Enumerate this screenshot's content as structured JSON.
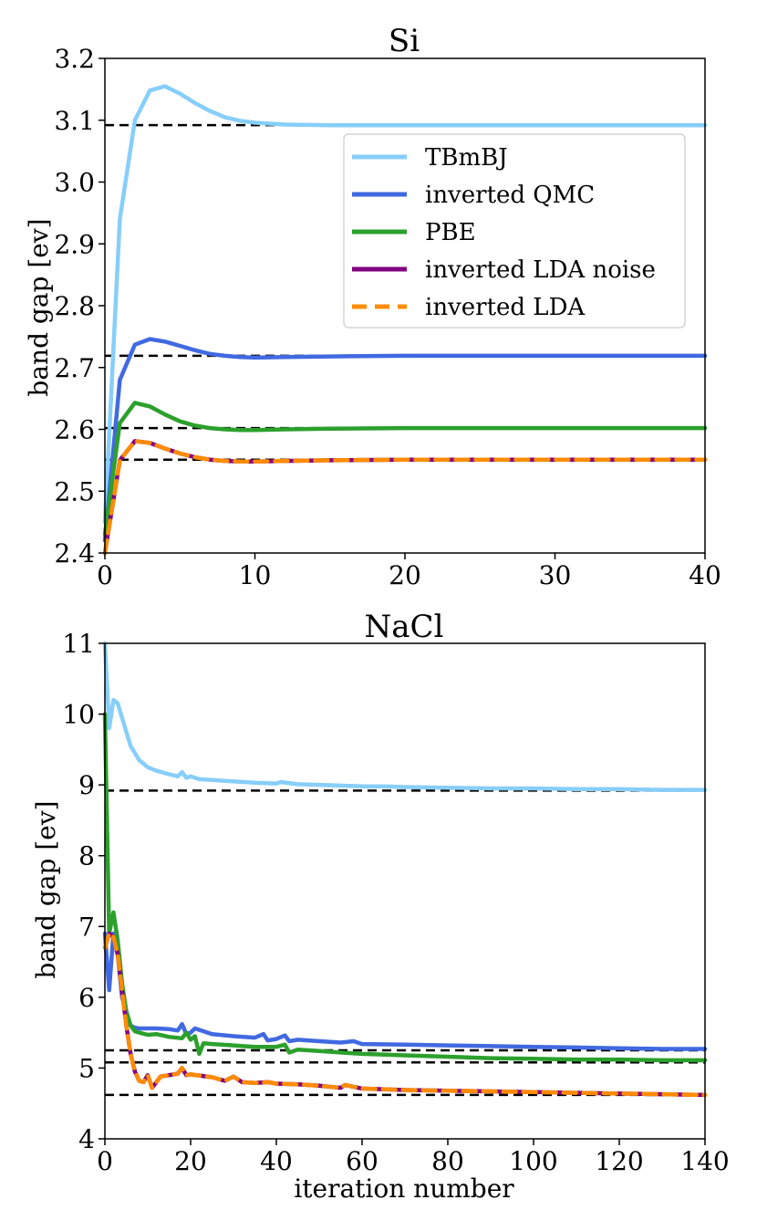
{
  "chart_data": [
    {
      "type": "line",
      "title": "Si",
      "xlabel": "",
      "ylabel": "band gap [ev]",
      "xlim": [
        0,
        40
      ],
      "ylim": [
        2.4,
        3.2
      ],
      "xticks": [
        "0",
        "10",
        "20",
        "30",
        "40"
      ],
      "yticks": [
        "2.4",
        "2.5",
        "2.6",
        "2.7",
        "2.8",
        "2.9",
        "3.0",
        "3.1",
        "3.2"
      ],
      "grid": false,
      "legend": "upper-right",
      "reference_lines": [
        3.092,
        2.719,
        2.602,
        2.551
      ],
      "series": [
        {
          "name": "TBmBJ",
          "color": "#87CEFA",
          "style": "solid",
          "x": [
            0,
            1,
            2,
            3,
            4,
            5,
            6,
            7,
            8,
            9,
            10,
            12,
            15,
            20,
            25,
            30,
            35,
            40
          ],
          "y": [
            2.45,
            2.94,
            3.1,
            3.148,
            3.155,
            3.143,
            3.128,
            3.115,
            3.105,
            3.099,
            3.096,
            3.093,
            3.092,
            3.092,
            3.092,
            3.092,
            3.092,
            3.092
          ]
        },
        {
          "name": "inverted QMC",
          "color": "#4169E1",
          "style": "solid",
          "x": [
            0,
            1,
            2,
            3,
            4,
            5,
            6,
            7,
            8,
            9,
            10,
            12,
            15,
            20,
            25,
            30,
            35,
            40
          ],
          "y": [
            2.42,
            2.68,
            2.737,
            2.746,
            2.742,
            2.735,
            2.728,
            2.722,
            2.719,
            2.717,
            2.716,
            2.717,
            2.718,
            2.719,
            2.719,
            2.719,
            2.719,
            2.719
          ]
        },
        {
          "name": "PBE",
          "color": "#2CA02C",
          "style": "solid",
          "x": [
            0,
            1,
            2,
            3,
            4,
            5,
            6,
            7,
            8,
            9,
            10,
            12,
            15,
            20,
            25,
            30,
            35,
            40
          ],
          "y": [
            2.43,
            2.61,
            2.643,
            2.637,
            2.624,
            2.613,
            2.606,
            2.602,
            2.6,
            2.599,
            2.599,
            2.6,
            2.601,
            2.602,
            2.602,
            2.602,
            2.602,
            2.602
          ]
        },
        {
          "name": "inverted LDA noise",
          "color": "#800080",
          "style": "solid",
          "x": [
            0,
            1,
            2,
            3,
            4,
            5,
            6,
            7,
            8,
            9,
            10,
            12,
            15,
            20,
            25,
            30,
            35,
            40
          ],
          "y": [
            2.4,
            2.55,
            2.581,
            2.578,
            2.569,
            2.561,
            2.555,
            2.551,
            2.549,
            2.548,
            2.548,
            2.549,
            2.55,
            2.551,
            2.551,
            2.551,
            2.551,
            2.551
          ]
        },
        {
          "name": "inverted LDA",
          "color": "#FF8C00",
          "style": "dashed",
          "x": [
            0,
            1,
            2,
            3,
            4,
            5,
            6,
            7,
            8,
            9,
            10,
            12,
            15,
            20,
            25,
            30,
            35,
            40
          ],
          "y": [
            2.4,
            2.55,
            2.581,
            2.578,
            2.569,
            2.561,
            2.555,
            2.551,
            2.549,
            2.548,
            2.548,
            2.549,
            2.55,
            2.551,
            2.551,
            2.551,
            2.551,
            2.551
          ]
        }
      ]
    },
    {
      "type": "line",
      "title": "NaCl",
      "xlabel": "iteration number",
      "ylabel": "band gap [ev]",
      "xlim": [
        0,
        140
      ],
      "ylim": [
        4,
        11
      ],
      "xticks": [
        "0",
        "20",
        "40",
        "60",
        "80",
        "100",
        "120",
        "140"
      ],
      "yticks": [
        "4",
        "5",
        "6",
        "7",
        "8",
        "9",
        "10",
        "11"
      ],
      "grid": false,
      "legend": "none",
      "reference_lines": [
        8.92,
        5.25,
        5.08,
        4.62
      ],
      "series": [
        {
          "name": "TBmBJ",
          "color": "#87CEFA",
          "style": "solid",
          "x": [
            0,
            1,
            2,
            3,
            4,
            6,
            8,
            10,
            12,
            15,
            17,
            18,
            19,
            20,
            22,
            25,
            30,
            35,
            40,
            41,
            45,
            50,
            55,
            60,
            65,
            70,
            80,
            90,
            100,
            110,
            120,
            130,
            140
          ],
          "y": [
            11.0,
            9.8,
            10.2,
            10.15,
            9.95,
            9.55,
            9.35,
            9.25,
            9.2,
            9.15,
            9.12,
            9.18,
            9.1,
            9.12,
            9.08,
            9.07,
            9.05,
            9.03,
            9.02,
            9.04,
            9.01,
            9.0,
            8.99,
            8.98,
            8.98,
            8.97,
            8.96,
            8.95,
            8.95,
            8.94,
            8.94,
            8.93,
            8.93
          ]
        },
        {
          "name": "inverted QMC",
          "color": "#4169E1",
          "style": "solid",
          "x": [
            0,
            1,
            2,
            3,
            4,
            5,
            6,
            7,
            8,
            10,
            12,
            15,
            17,
            18,
            19,
            20,
            21,
            25,
            30,
            35,
            37,
            38,
            40,
            42,
            43,
            45,
            50,
            55,
            58,
            60,
            70,
            80,
            90,
            100,
            110,
            120,
            130,
            140
          ],
          "y": [
            6.9,
            6.1,
            6.9,
            6.6,
            6.0,
            5.8,
            5.6,
            5.57,
            5.56,
            5.56,
            5.56,
            5.55,
            5.53,
            5.62,
            5.48,
            5.5,
            5.56,
            5.48,
            5.45,
            5.43,
            5.48,
            5.39,
            5.41,
            5.46,
            5.38,
            5.4,
            5.38,
            5.36,
            5.38,
            5.34,
            5.33,
            5.32,
            5.31,
            5.3,
            5.29,
            5.28,
            5.27,
            5.27
          ]
        },
        {
          "name": "PBE",
          "color": "#2CA02C",
          "style": "solid",
          "x": [
            0,
            1,
            2,
            3,
            4,
            5,
            6,
            7,
            8,
            10,
            12,
            15,
            18,
            19,
            20,
            21,
            22,
            23,
            25,
            30,
            35,
            40,
            42,
            43,
            45,
            50,
            55,
            60,
            70,
            80,
            90,
            100,
            110,
            120,
            130,
            140
          ],
          "y": [
            10.0,
            6.9,
            7.2,
            6.8,
            6.2,
            5.8,
            5.6,
            5.52,
            5.5,
            5.47,
            5.48,
            5.44,
            5.42,
            5.5,
            5.4,
            5.45,
            5.2,
            5.35,
            5.34,
            5.32,
            5.3,
            5.3,
            5.33,
            5.22,
            5.26,
            5.24,
            5.22,
            5.2,
            5.18,
            5.16,
            5.14,
            5.13,
            5.12,
            5.12,
            5.11,
            5.11
          ]
        },
        {
          "name": "inverted LDA noise",
          "color": "#800080",
          "style": "solid",
          "x": [
            0,
            1,
            2,
            3,
            4,
            5,
            6,
            7,
            8,
            9,
            10,
            11,
            12,
            13,
            15,
            17,
            18,
            19,
            20,
            25,
            28,
            30,
            32,
            35,
            38,
            40,
            45,
            50,
            55,
            56,
            60,
            70,
            80,
            90,
            100,
            110,
            120,
            130,
            140
          ],
          "y": [
            6.7,
            6.9,
            6.85,
            6.6,
            6.1,
            5.6,
            5.2,
            4.95,
            4.82,
            4.8,
            4.9,
            4.72,
            4.8,
            4.88,
            4.9,
            4.92,
            5.0,
            4.9,
            4.91,
            4.87,
            4.82,
            4.88,
            4.8,
            4.79,
            4.8,
            4.78,
            4.77,
            4.75,
            4.72,
            4.76,
            4.71,
            4.69,
            4.68,
            4.67,
            4.66,
            4.65,
            4.64,
            4.63,
            4.62
          ]
        },
        {
          "name": "inverted LDA",
          "color": "#FF8C00",
          "style": "dashed",
          "x": [
            0,
            1,
            2,
            3,
            4,
            5,
            6,
            7,
            8,
            9,
            10,
            11,
            12,
            13,
            15,
            17,
            18,
            19,
            20,
            25,
            28,
            30,
            32,
            35,
            38,
            40,
            45,
            50,
            55,
            56,
            60,
            70,
            80,
            90,
            100,
            110,
            120,
            130,
            140
          ],
          "y": [
            6.7,
            6.9,
            6.85,
            6.6,
            6.1,
            5.6,
            5.2,
            4.95,
            4.82,
            4.8,
            4.9,
            4.72,
            4.8,
            4.88,
            4.9,
            4.92,
            5.0,
            4.9,
            4.91,
            4.87,
            4.82,
            4.88,
            4.8,
            4.79,
            4.8,
            4.78,
            4.77,
            4.75,
            4.72,
            4.76,
            4.71,
            4.69,
            4.68,
            4.67,
            4.66,
            4.65,
            4.64,
            4.63,
            4.62
          ]
        }
      ]
    }
  ]
}
